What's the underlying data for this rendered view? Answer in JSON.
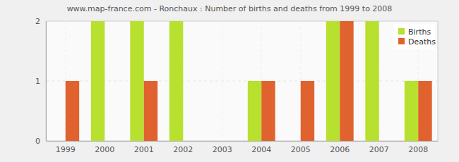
{
  "chart_data": {
    "type": "bar",
    "title": "www.map-france.com - Ronchaux : Number of births and deaths from 1999 to 2008",
    "categories": [
      "1999",
      "2000",
      "2001",
      "2002",
      "2003",
      "2004",
      "2005",
      "2006",
      "2007",
      "2008"
    ],
    "series": [
      {
        "name": "Births",
        "color": "#b8e02e",
        "values": [
          0,
          2,
          2,
          2,
          0,
          1,
          0,
          2,
          2,
          1
        ]
      },
      {
        "name": "Deaths",
        "color": "#e0622e",
        "values": [
          1,
          0,
          1,
          0,
          0,
          1,
          1,
          2,
          0,
          1
        ]
      }
    ],
    "ylim": [
      0,
      2
    ],
    "yticks": [
      0,
      1,
      2
    ],
    "grid": true,
    "legend": "top-right"
  }
}
